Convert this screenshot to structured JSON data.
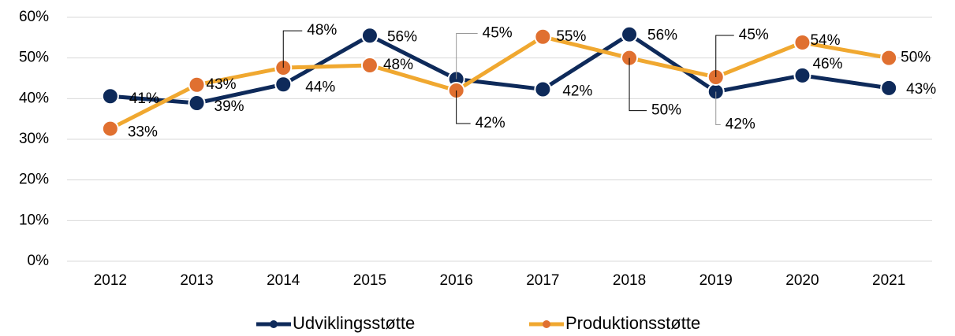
{
  "chart_data": {
    "type": "line",
    "categories": [
      "2012",
      "2013",
      "2014",
      "2015",
      "2016",
      "2017",
      "2018",
      "2019",
      "2020",
      "2021"
    ],
    "series": [
      {
        "name": "Udviklingsstøtte",
        "color": "#0e2a5a",
        "marker_color": "#0e2a5a",
        "values": [
          40.6,
          38.9,
          43.5,
          55.5,
          44.8,
          42.3,
          55.8,
          41.7,
          45.7,
          42.6
        ],
        "value_labels": [
          "41%",
          "39%",
          "44%",
          "56%",
          "45%",
          "42%",
          "56%",
          "42%",
          "46%",
          "43%"
        ]
      },
      {
        "name": "Produktionsstøtte",
        "color": "#f0a830",
        "marker_color": "#e07030",
        "values": [
          32.6,
          43.4,
          47.6,
          48.2,
          42,
          55.2,
          50,
          45.3,
          53.8,
          50
        ],
        "value_labels": [
          "33%",
          "43%",
          "48%",
          "48%",
          "42%",
          "55%",
          "50%",
          "45%",
          "54%",
          "50%"
        ]
      }
    ],
    "ylim": [
      0,
      60
    ],
    "yticks": [
      {
        "value": 0,
        "label": "0%"
      },
      {
        "value": 10,
        "label": "10%"
      },
      {
        "value": 20,
        "label": "20%"
      },
      {
        "value": 30,
        "label": "30%"
      },
      {
        "value": 40,
        "label": "40%"
      },
      {
        "value": 50,
        "label": "50%"
      },
      {
        "value": 60,
        "label": "60%"
      }
    ],
    "grid": true,
    "legend": "bottom"
  }
}
